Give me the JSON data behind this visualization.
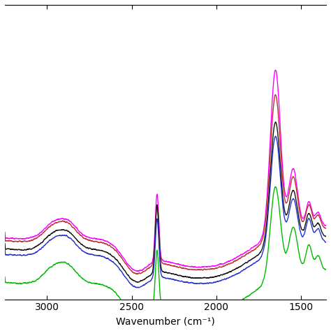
{
  "xlabel": "Wavenumber (cm⁻¹)",
  "xlim": [
    3250,
    1350
  ],
  "ylim": [
    -0.32,
    0.75
  ],
  "x_ticks": [
    3000,
    2500,
    2000,
    1500
  ],
  "background_color": "#ffffff",
  "line_colors": [
    "#ff00ff",
    "#bb3333",
    "#111111",
    "#2233cc",
    "#00bb00"
  ],
  "line_lw": 1.0
}
